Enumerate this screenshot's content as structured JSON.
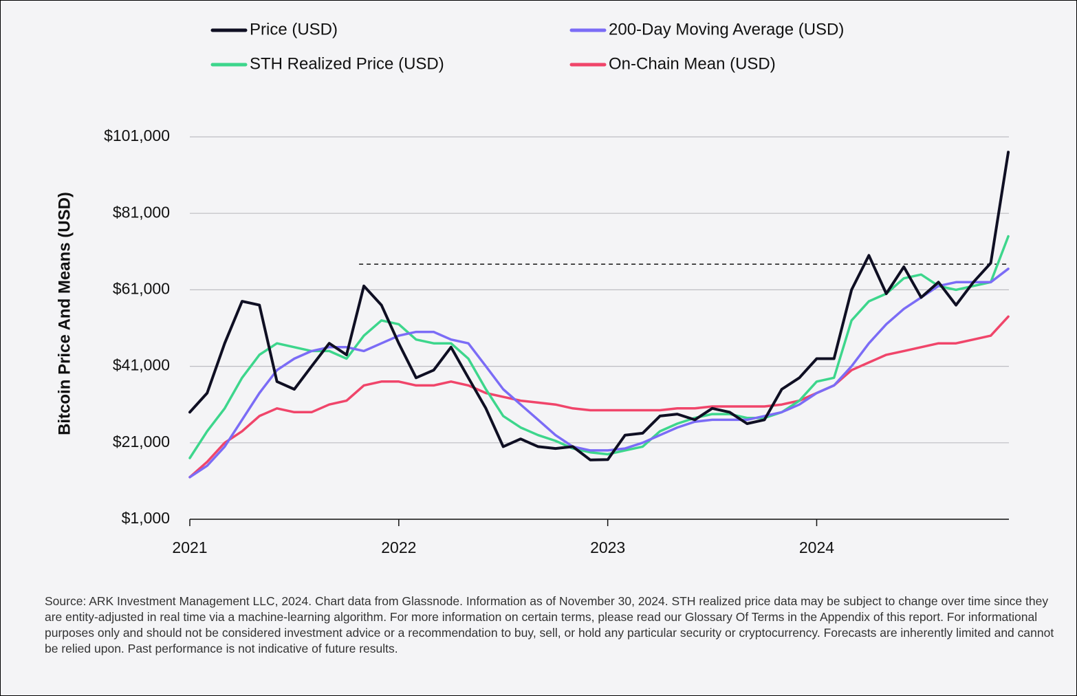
{
  "chart_data": {
    "type": "line",
    "y_label": "Bitcoin Price And Means (USD)",
    "x": [
      2021,
      2021.083,
      2021.167,
      2021.25,
      2021.333,
      2021.417,
      2021.5,
      2021.583,
      2021.667,
      2021.75,
      2021.833,
      2021.917,
      2022,
      2022.083,
      2022.167,
      2022.25,
      2022.333,
      2022.417,
      2022.5,
      2022.583,
      2022.667,
      2022.75,
      2022.833,
      2022.917,
      2023,
      2023.083,
      2023.167,
      2023.25,
      2023.333,
      2023.417,
      2023.5,
      2023.583,
      2023.667,
      2023.75,
      2023.833,
      2023.917,
      2024,
      2024.083,
      2024.167,
      2024.25,
      2024.333,
      2024.417,
      2024.5,
      2024.583,
      2024.667,
      2024.75,
      2024.833,
      2024.917
    ],
    "series": [
      {
        "name": "Price (USD)",
        "color": "#0f0f23",
        "values": [
          29000,
          34000,
          47000,
          58000,
          57000,
          37000,
          35000,
          41000,
          47000,
          44000,
          62000,
          57000,
          47000,
          38000,
          40000,
          46000,
          38000,
          30000,
          20000,
          22000,
          20000,
          19500,
          20000,
          16500,
          16600,
          23000,
          23500,
          28000,
          28500,
          27000,
          30000,
          29000,
          26000,
          27000,
          35000,
          38000,
          43000,
          43000,
          61000,
          70000,
          60000,
          67000,
          59000,
          63000,
          57000,
          63000,
          68000,
          97000
        ]
      },
      {
        "name": "200-Day Moving Average (USD)",
        "color": "#7b6cf6",
        "values": [
          12000,
          15000,
          20000,
          27000,
          34000,
          40000,
          43000,
          45000,
          46000,
          46000,
          45000,
          47000,
          49000,
          50000,
          50000,
          48000,
          47000,
          41000,
          35000,
          31000,
          27000,
          23000,
          20000,
          19000,
          19000,
          19500,
          21000,
          23000,
          25000,
          26500,
          27000,
          27000,
          27000,
          28000,
          29000,
          31000,
          34000,
          36000,
          41000,
          47000,
          52000,
          56000,
          59000,
          62000,
          63000,
          63000,
          63000,
          66500
        ]
      },
      {
        "name": "STH Realized Price (USD)",
        "color": "#3dd68c",
        "values": [
          17000,
          24000,
          30000,
          38000,
          44000,
          47000,
          46000,
          45000,
          45000,
          43000,
          49000,
          53000,
          52000,
          48000,
          47000,
          47000,
          43000,
          35000,
          28000,
          25000,
          23000,
          21500,
          19500,
          18500,
          18000,
          19000,
          20000,
          24000,
          26000,
          27500,
          28500,
          28500,
          27500,
          27500,
          29000,
          32000,
          37000,
          38000,
          53000,
          58000,
          60000,
          64000,
          65000,
          62000,
          61000,
          62000,
          63000,
          75000
        ]
      },
      {
        "name": "On-Chain Mean (USD)",
        "color": "#f0456a",
        "values": [
          12000,
          16000,
          21000,
          24000,
          28000,
          30000,
          29000,
          29000,
          31000,
          32000,
          36000,
          37000,
          37000,
          36000,
          36000,
          37000,
          36000,
          34000,
          33000,
          32000,
          31500,
          31000,
          30000,
          29500,
          29500,
          29500,
          29500,
          29500,
          30000,
          30000,
          30500,
          30500,
          30500,
          30500,
          31000,
          32000,
          34000,
          36000,
          40000,
          42000,
          44000,
          45000,
          46000,
          47000,
          47000,
          48000,
          49000,
          54000
        ]
      }
    ],
    "xlim": [
      2021,
      2024.92
    ],
    "xticks": [
      2021,
      2022,
      2023,
      2024
    ],
    "ylim": [
      1000,
      101000
    ],
    "yticks": [
      {
        "value": 1000,
        "label": "$1,000"
      },
      {
        "value": 21000,
        "label": "$21,000"
      },
      {
        "value": 41000,
        "label": "$41,000"
      },
      {
        "value": 61000,
        "label": "$61,000"
      },
      {
        "value": 81000,
        "label": "$81,000"
      },
      {
        "value": 101000,
        "label": "$101,000"
      }
    ],
    "grid": true,
    "reference_line": {
      "value": 67700,
      "x": [
        2021.81,
        2024.92
      ]
    },
    "footnote": "Source: ARK Investment Management LLC, 2024. Chart data from Glassnode. Information as of November 30, 2024. STH realized price data may be subject to change over time since they are entity-adjusted in real time via a machine-learning algorithm. For more information on certain terms, please read our Glossary Of Terms in the Appendix of this report. For informational purposes only and should not be considered investment advice or a recommendation to buy, sell, or hold any particular security or cryptocurrency. Forecasts are inherently limited and cannot be relied upon. Past performance is not indicative of future results."
  }
}
